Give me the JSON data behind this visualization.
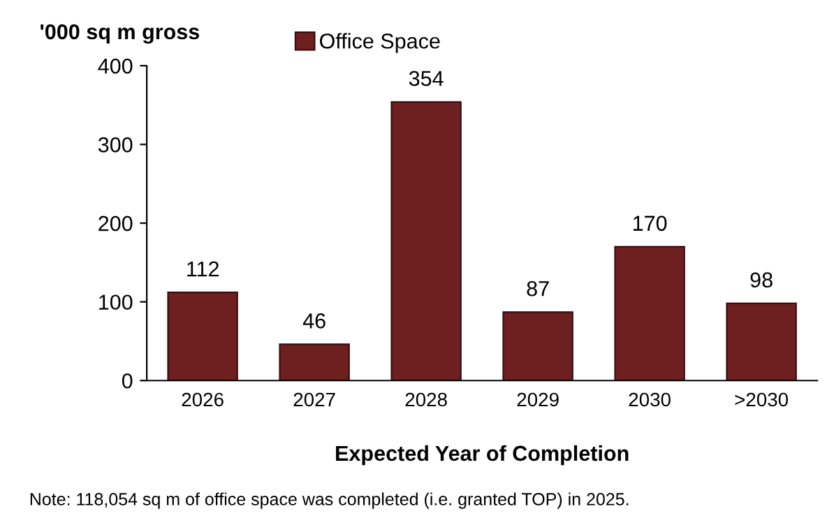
{
  "chart_data": {
    "type": "bar",
    "ylabel": "'000 sq m gross",
    "xlabel": "Expected Year of Completion",
    "categories": [
      "2026",
      "2027",
      "2028",
      "2029",
      "2030",
      ">2030"
    ],
    "series": [
      {
        "name": "Office Space",
        "color": "#6e1f1f",
        "values": [
          112,
          46,
          354,
          87,
          170,
          98
        ]
      }
    ],
    "ylim": [
      0,
      400
    ],
    "yticks": [
      0,
      100,
      200,
      300,
      400
    ],
    "grid": false,
    "legend": "top",
    "data_labels": true,
    "annotations": [
      "Note: 118,054 sq m of office space was completed (i.e. granted TOP) in 2025."
    ]
  }
}
